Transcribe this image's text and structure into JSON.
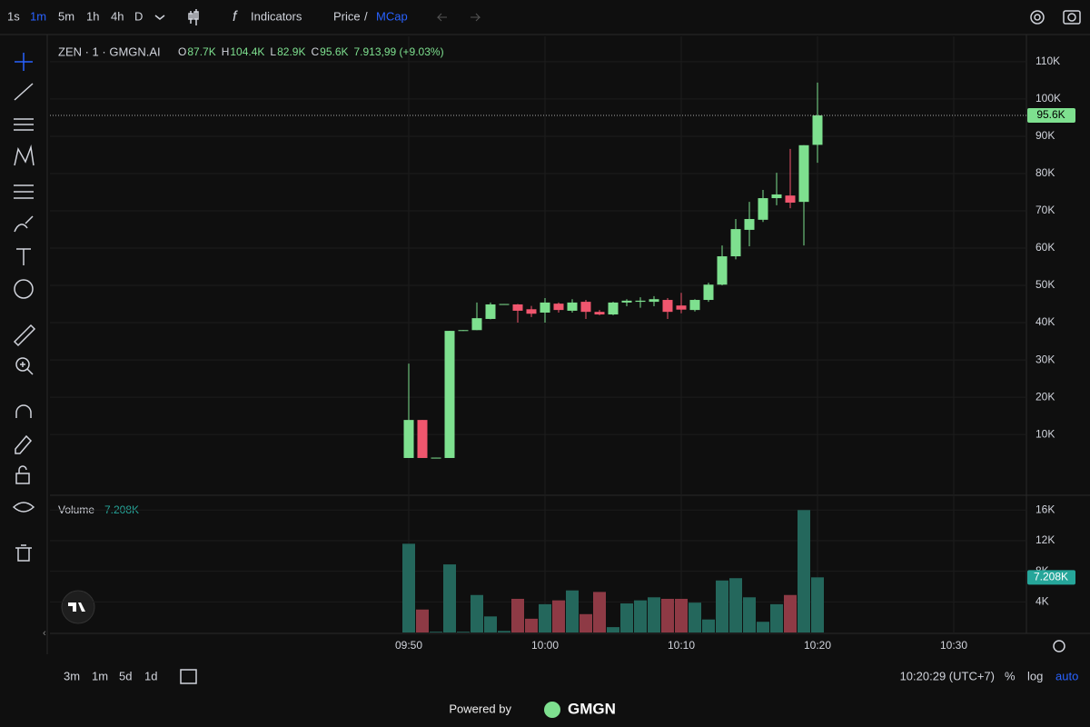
{
  "toolbar": {
    "intervals": [
      "1s",
      "1m",
      "5m",
      "1h",
      "4h",
      "D"
    ],
    "indicators": "Indicators",
    "price": "Price",
    "separator": "/",
    "mcap": "MCap"
  },
  "bottom_bar": {
    "ranges": [
      "3m",
      "1m",
      "5d",
      "1d"
    ],
    "time": "10:20:29 (UTC+7)",
    "percent": "%",
    "log": "log",
    "auto": "auto"
  },
  "footer": {
    "powered": "Powered by",
    "brand": "GMGN"
  },
  "chart_data": {
    "type": "candlestick",
    "title": "ZEN · 1 · GMGN.AI",
    "legend": [
      {
        "key": "O",
        "value": "87.7K"
      },
      {
        "key": "H",
        "value": "104.4K"
      },
      {
        "key": "L",
        "value": "82.9K"
      },
      {
        "key": "C",
        "value": "95.6K"
      }
    ],
    "change": "7.913,99 (+9.03%)",
    "x": [
      "09:50",
      "09:51",
      "09:52",
      "09:53",
      "09:54",
      "09:55",
      "09:56",
      "09:57",
      "09:58",
      "09:59",
      "10:00",
      "10:01",
      "10:02",
      "10:03",
      "10:04",
      "10:05",
      "10:06",
      "10:07",
      "10:08",
      "10:09",
      "10:10",
      "10:11",
      "10:12",
      "10:13",
      "10:14",
      "10:15",
      "10:16",
      "10:17",
      "10:18",
      "10:19",
      "10:20"
    ],
    "open": [
      3700,
      13900,
      3700,
      3700,
      37800,
      38000,
      41000,
      44800,
      44900,
      43600,
      42700,
      45100,
      43200,
      45600,
      42900,
      42200,
      45400,
      45600,
      45600,
      46100,
      44600,
      43400,
      46100,
      50200,
      57800,
      64900,
      67600,
      73400,
      74100,
      72400,
      87700
    ],
    "high": [
      29000,
      13900,
      3800,
      37800,
      38000,
      45400,
      45400,
      45000,
      45000,
      44500,
      46600,
      45400,
      46300,
      46100,
      43400,
      45600,
      46300,
      46800,
      47100,
      46600,
      48000,
      46300,
      50700,
      60700,
      67800,
      72400,
      75600,
      80200,
      86600,
      87600,
      104400
    ],
    "low": [
      3700,
      3700,
      3700,
      3700,
      37800,
      38000,
      40900,
      44800,
      40000,
      41500,
      40000,
      42700,
      42700,
      41000,
      42000,
      42000,
      44400,
      44000,
      44400,
      41000,
      42500,
      43000,
      45600,
      50000,
      57000,
      60500,
      67000,
      71500,
      70700,
      60700,
      82900
    ],
    "close": [
      13900,
      3700,
      3800,
      37800,
      38000,
      41200,
      44900,
      45000,
      43200,
      42400,
      45400,
      43400,
      45400,
      42900,
      42200,
      45400,
      45900,
      45900,
      46300,
      42900,
      43500,
      46100,
      50200,
      57800,
      65100,
      67800,
      73400,
      74400,
      72200,
      87600,
      95600
    ],
    "up_color": "#7ee08f",
    "down_color": "#f0566e",
    "ylim": [
      -6300,
      116800
    ],
    "yticks": [
      {
        "value": 10000,
        "label": "10K"
      },
      {
        "value": 20000,
        "label": "20K"
      },
      {
        "value": 30000,
        "label": "30K"
      },
      {
        "value": 40000,
        "label": "40K"
      },
      {
        "value": 50000,
        "label": "50K"
      },
      {
        "value": 60000,
        "label": "60K"
      },
      {
        "value": 70000,
        "label": "70K"
      },
      {
        "value": 80000,
        "label": "80K"
      },
      {
        "value": 90000,
        "label": "90K"
      },
      {
        "value": 100000,
        "label": "100K"
      },
      {
        "value": 110000,
        "label": "110K"
      }
    ],
    "last_price_label": "95.6K",
    "xticks": [
      "09:50",
      "10:00",
      "10:10",
      "10:20",
      "10:30"
    ],
    "grid": true,
    "volume": {
      "title": "Volume",
      "value_label": "7.208K",
      "up_color": "#24675c",
      "down_color": "#8e3a45",
      "values": [
        11600,
        3000,
        100,
        8900,
        100,
        4900,
        2100,
        200,
        4400,
        1800,
        3700,
        4200,
        5500,
        2400,
        5300,
        700,
        3800,
        4200,
        4600,
        4400,
        4400,
        3900,
        1700,
        6800,
        7100,
        4600,
        1400,
        3700,
        4900,
        16000,
        7208
      ],
      "ylim": [
        0,
        17700
      ],
      "yticks": [
        {
          "value": 4000,
          "label": "4K"
        },
        {
          "value": 8000,
          "label": "8K"
        },
        {
          "value": 12000,
          "label": "12K"
        },
        {
          "value": 16000,
          "label": "16K"
        }
      ]
    }
  }
}
